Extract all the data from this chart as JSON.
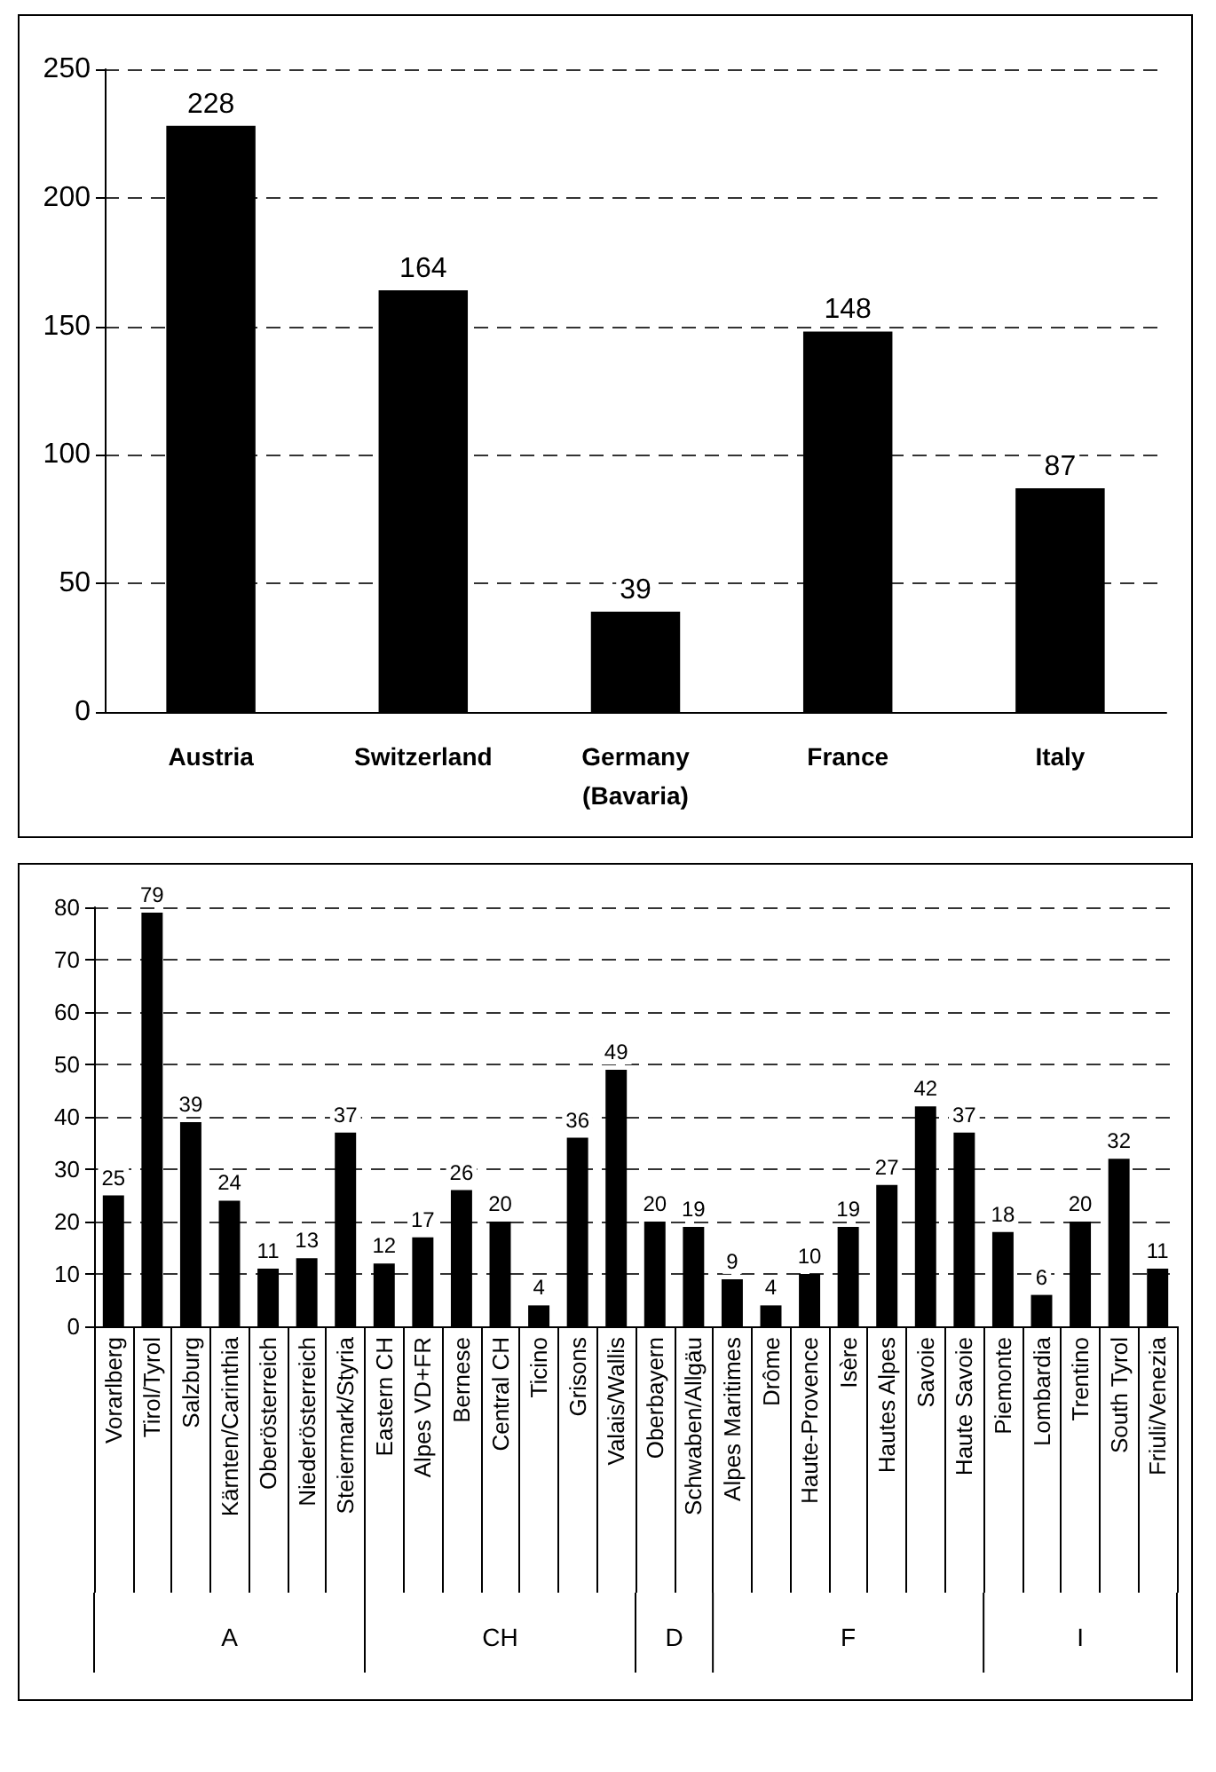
{
  "chart_data": [
    {
      "type": "bar",
      "categories": [
        "Austria",
        "Switzerland",
        "Germany\n(Bavaria)",
        "France",
        "Italy"
      ],
      "values": [
        228,
        164,
        39,
        148,
        87
      ],
      "color": "#000000",
      "ylim": [
        0,
        250
      ],
      "yticks": [
        0,
        50,
        100,
        150,
        200,
        250
      ],
      "grid": "y",
      "data_labels": true
    },
    {
      "type": "bar",
      "categories": [
        "Vorarlberg",
        "Tirol/Tyrol",
        "Salzburg",
        "Kärnten/Carinthia",
        "Oberösterreich",
        "Niederösterreich",
        "Steiermark/Styria",
        "Eastern CH",
        "Alpes VD+FR",
        "Bernese",
        "Central CH",
        "Ticino",
        "Grisons",
        "Valais/Wallis",
        "Oberbayern",
        "Schwaben/Allgäu",
        "Alpes Maritimes",
        "Drôme",
        "Haute-Provence",
        "Isère",
        "Hautes Alpes",
        "Savoie",
        "Haute Savoie",
        "Piemonte",
        "Lombardia",
        "Trentino",
        "South Tyrol",
        "Friuli/Venezia"
      ],
      "values": [
        25,
        79,
        39,
        24,
        11,
        13,
        37,
        12,
        17,
        26,
        20,
        4,
        36,
        49,
        20,
        19,
        9,
        4,
        10,
        19,
        27,
        42,
        37,
        18,
        6,
        20,
        32,
        11
      ],
      "color": "#000000",
      "ylim": [
        0,
        80
      ],
      "yticks": [
        0,
        10,
        20,
        30,
        40,
        50,
        60,
        70,
        80
      ],
      "grid": "y",
      "data_labels": true,
      "annotations": [
        "A",
        "CH",
        "D",
        "F",
        "I"
      ]
    }
  ]
}
